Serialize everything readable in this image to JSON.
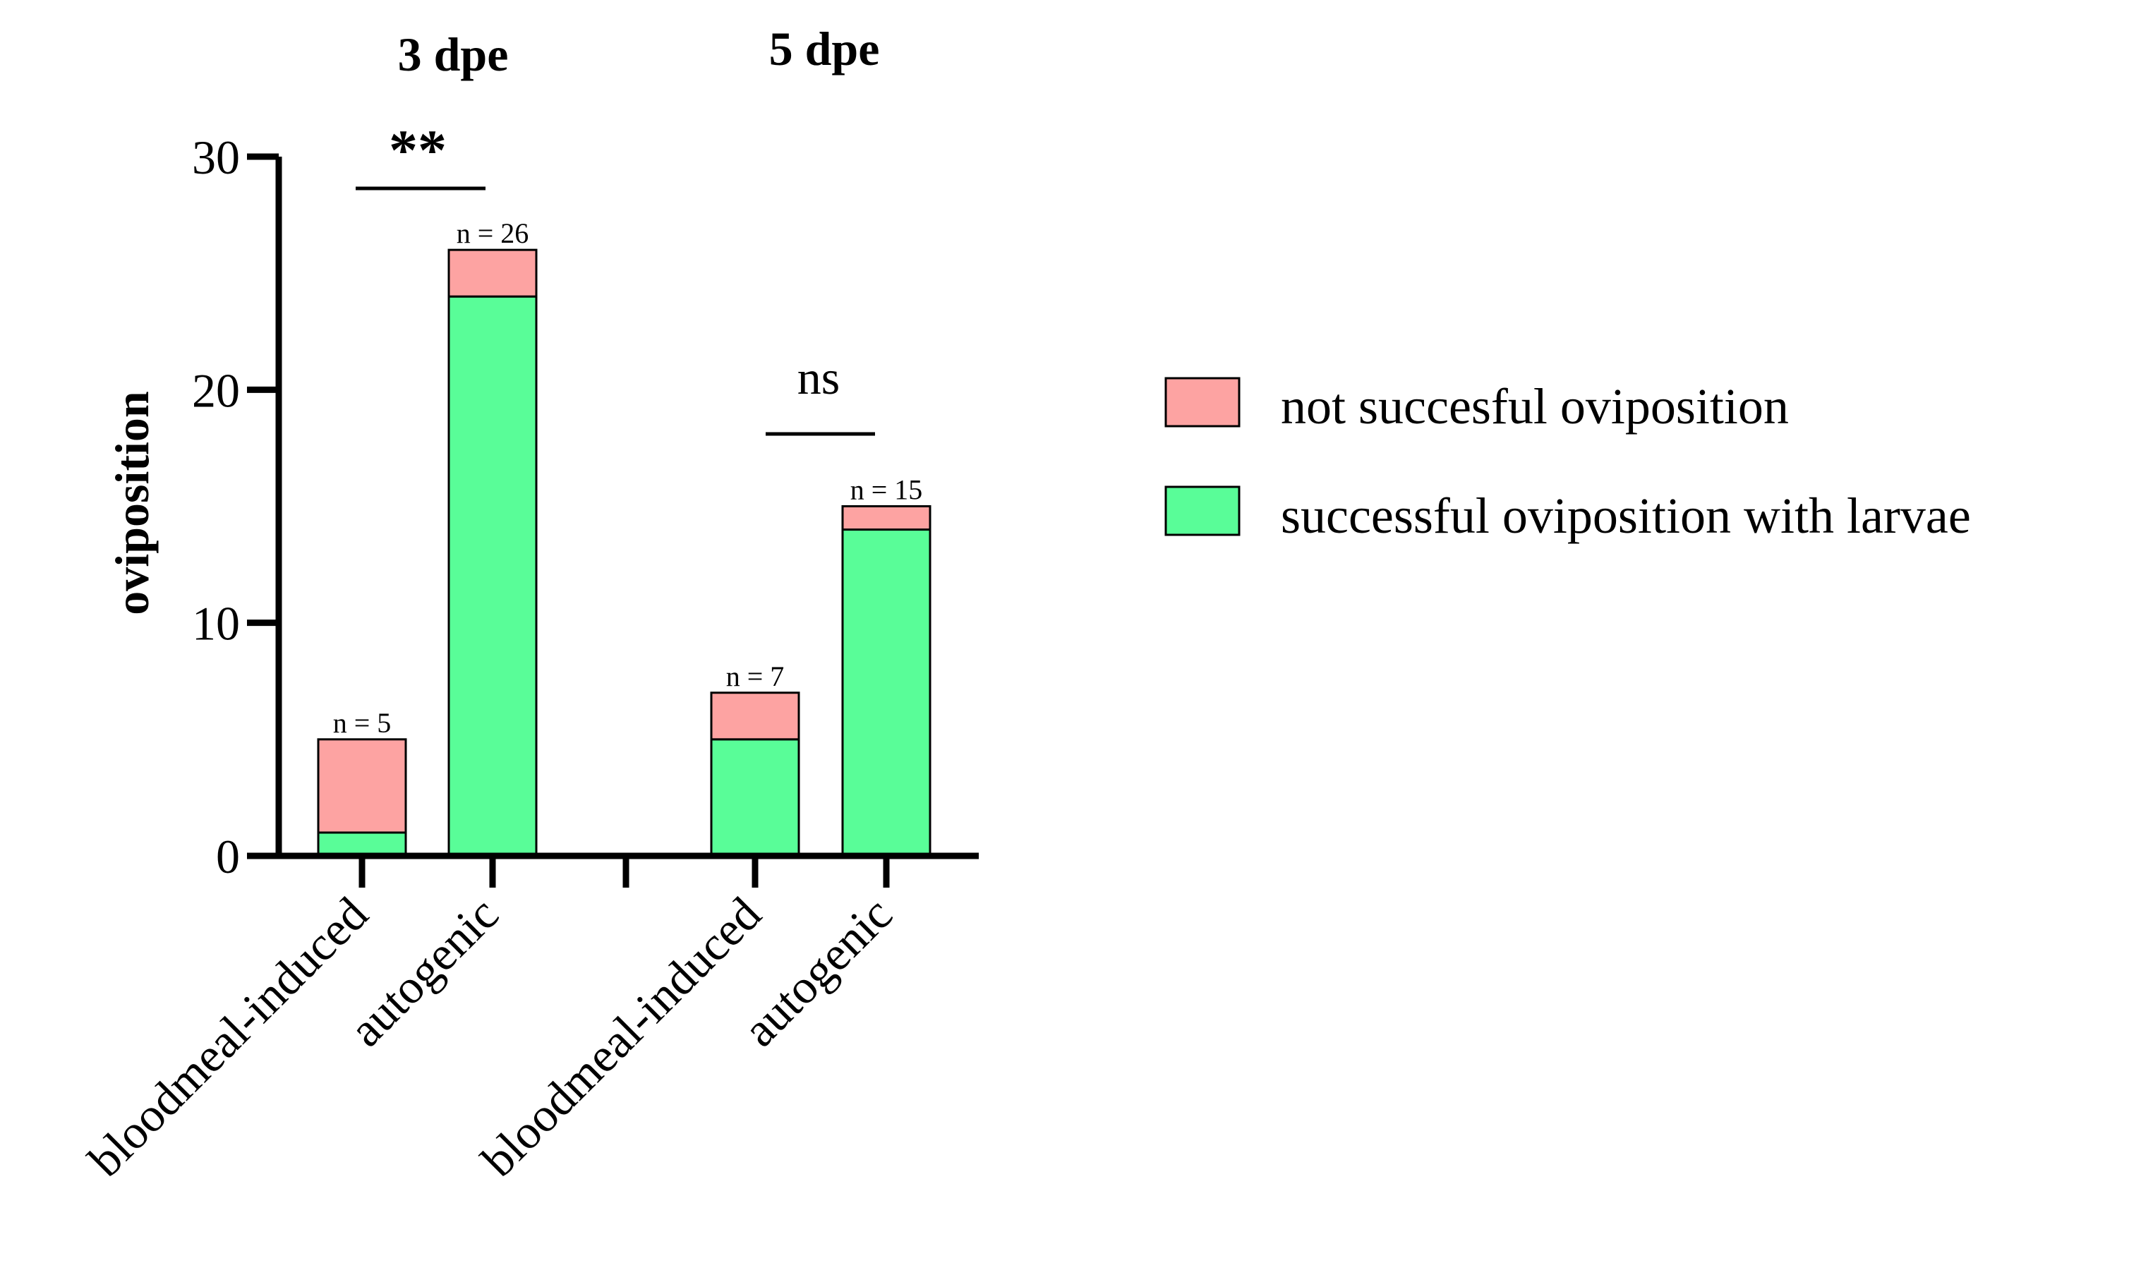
{
  "chart_data": {
    "type": "bar",
    "stacked": true,
    "ylabel": "oviposition",
    "ylim": [
      0,
      30
    ],
    "yticks": [
      0,
      10,
      20,
      30
    ],
    "groups": [
      {
        "label": "3 dpe",
        "significance": "**"
      },
      {
        "label": "5 dpe",
        "significance": "ns"
      }
    ],
    "categories": [
      "bloodmeal-induced",
      "autogenic",
      "bloodmeal-induced",
      "autogenic"
    ],
    "category_group": [
      0,
      0,
      1,
      1
    ],
    "series": [
      {
        "name": "successful oviposition with larvae",
        "color": "#59fd98",
        "values": [
          1,
          24,
          5,
          14
        ]
      },
      {
        "name": "not succesful oviposition",
        "color": "#fda3a2",
        "values": [
          4,
          2,
          2,
          1
        ]
      }
    ],
    "totals_labels": [
      "n = 5",
      "n = 26",
      "n = 7",
      "n = 15"
    ],
    "legend": [
      {
        "label": "not succesful oviposition",
        "color": "#fda3a2"
      },
      {
        "label": "successful oviposition with larvae",
        "color": "#59fd98"
      }
    ],
    "legend_position": "right"
  }
}
